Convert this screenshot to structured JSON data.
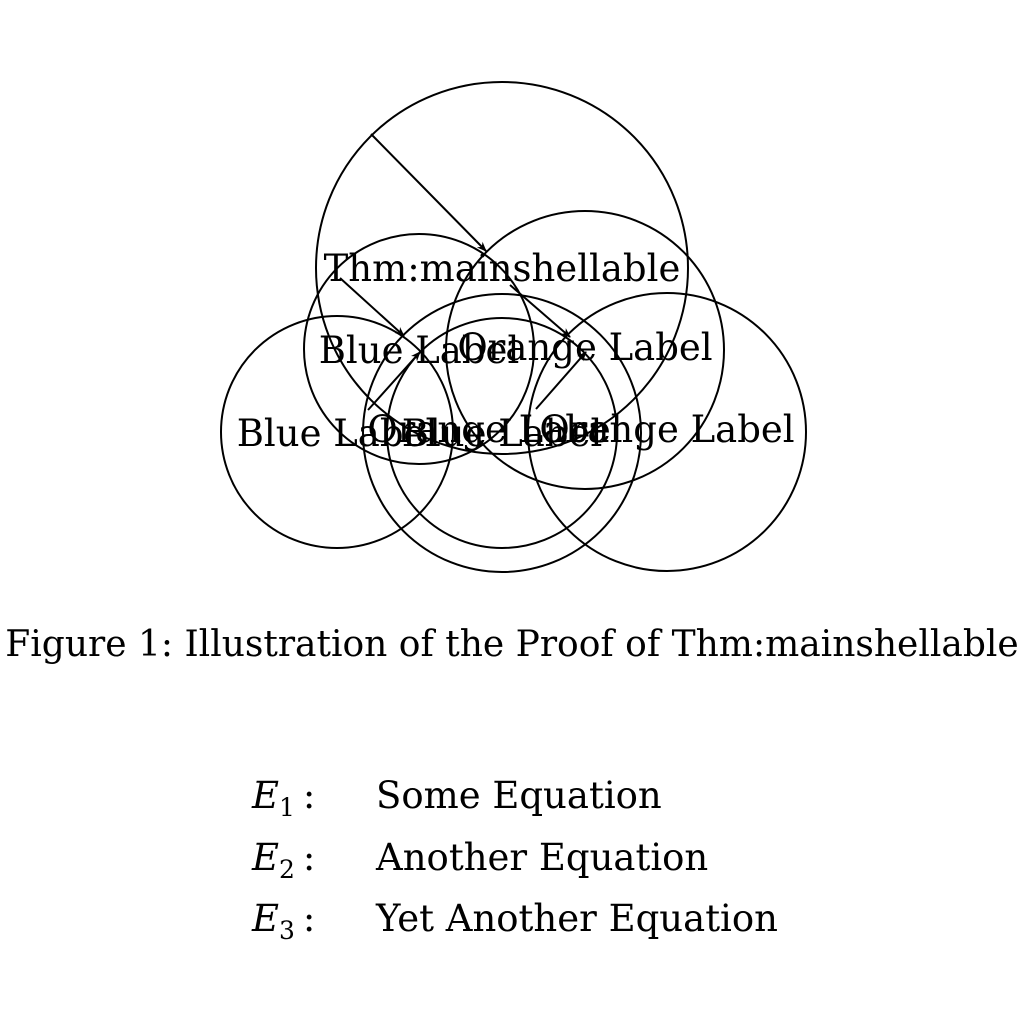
{
  "diagram": {
    "main_label": "Thm:mainshellable",
    "blue_label": "Blue Label",
    "orange_label": "Orange Label"
  },
  "caption": "Figure 1: Illustration of the Proof of Thm:mainshellable",
  "equations": [
    {
      "symbol": "E",
      "subscript": "1",
      "colon": ":",
      "text": "Some Equation"
    },
    {
      "symbol": "E",
      "subscript": "2",
      "colon": ":",
      "text": "Another Equation"
    },
    {
      "symbol": "E",
      "subscript": "3",
      "colon": ":",
      "text": "Yet Another Equation"
    }
  ]
}
